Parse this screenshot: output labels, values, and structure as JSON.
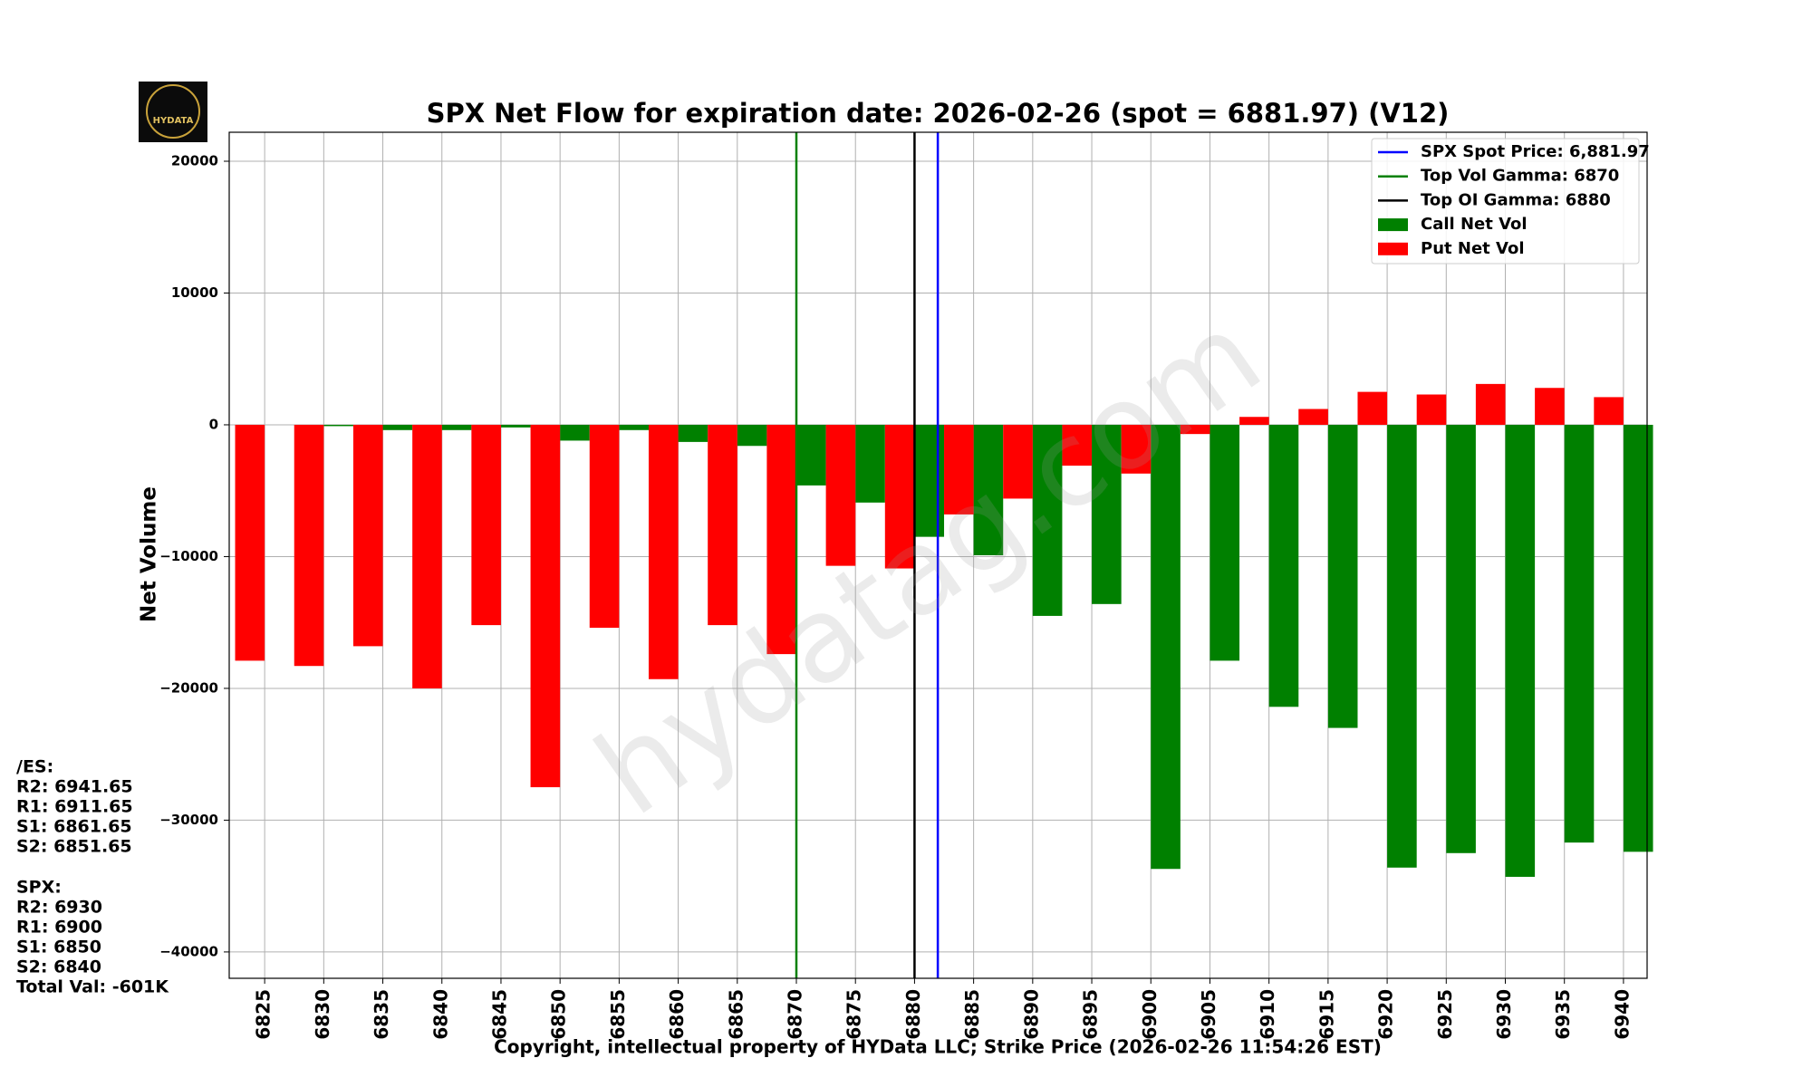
{
  "logo": {
    "text": "HYDATA"
  },
  "watermark": "hydatag.com",
  "side_notes": [
    [
      "/ES:",
      "R2: 6941.65",
      "R1: 6911.65",
      "S1: 6861.65",
      "S2: 6851.65"
    ],
    [
      "SPX:",
      "R2: 6930",
      "R1: 6900",
      "S1: 6850",
      "S2: 6840",
      "Total Val: -601K"
    ]
  ],
  "chart_data": {
    "type": "bar",
    "title": "SPX Net Flow for expiration date: 2026-02-26 (spot = 6881.97) (V12)",
    "xlabel": "Copyright, intellectual property of HYData LLC; Strike Price (2026-02-26 11:54:26 EST)",
    "ylabel": "Net Volume",
    "x": [
      6825,
      6830,
      6835,
      6840,
      6845,
      6850,
      6855,
      6860,
      6865,
      6870,
      6875,
      6880,
      6885,
      6890,
      6895,
      6900,
      6905,
      6910,
      6915,
      6920,
      6925,
      6930,
      6935,
      6940
    ],
    "xlim": [
      6822,
      6942
    ],
    "xticks": [
      6825,
      6830,
      6835,
      6840,
      6845,
      6850,
      6855,
      6860,
      6865,
      6870,
      6875,
      6880,
      6885,
      6890,
      6895,
      6900,
      6905,
      6910,
      6915,
      6920,
      6925,
      6930,
      6935,
      6940
    ],
    "ylim": [
      -42000,
      22200
    ],
    "yticks": [
      {
        "value": -40000,
        "label": "−40000"
      },
      {
        "value": -30000,
        "label": "−30000"
      },
      {
        "value": -20000,
        "label": "−20000"
      },
      {
        "value": -10000,
        "label": "−10000"
      },
      0,
      10000,
      20000
    ],
    "grid": true,
    "legend": "upper right",
    "vlines": [
      {
        "name": "SPX Spot Price: 6,881.97",
        "color": "blue",
        "value": 6881.97
      },
      {
        "name": "Top Vol Gamma: 6870",
        "color": "green",
        "value": 6870
      },
      {
        "name": "Top OI Gamma: 6880",
        "color": "black",
        "value": 6880
      }
    ],
    "series": [
      {
        "name": "Call Net Vol",
        "color": "green",
        "values": [
          0,
          -100,
          -400,
          -400,
          -200,
          -1200,
          -400,
          -1300,
          -1600,
          -4600,
          -5900,
          -8500,
          -9900,
          -14500,
          -13600,
          -33700,
          -17900,
          -21400,
          -23000,
          -33600,
          -32500,
          -34300,
          -31700,
          -32400
        ]
      },
      {
        "name": "Put Net Vol",
        "color": "red",
        "values": [
          -17900,
          -18300,
          -16800,
          -20000,
          -15200,
          -27500,
          -15400,
          -19300,
          -15200,
          -17400,
          -10700,
          -10900,
          -6800,
          -5600,
          -3100,
          -3700,
          -700,
          600,
          1200,
          2500,
          2300,
          3100,
          2800,
          2100
        ]
      }
    ]
  }
}
